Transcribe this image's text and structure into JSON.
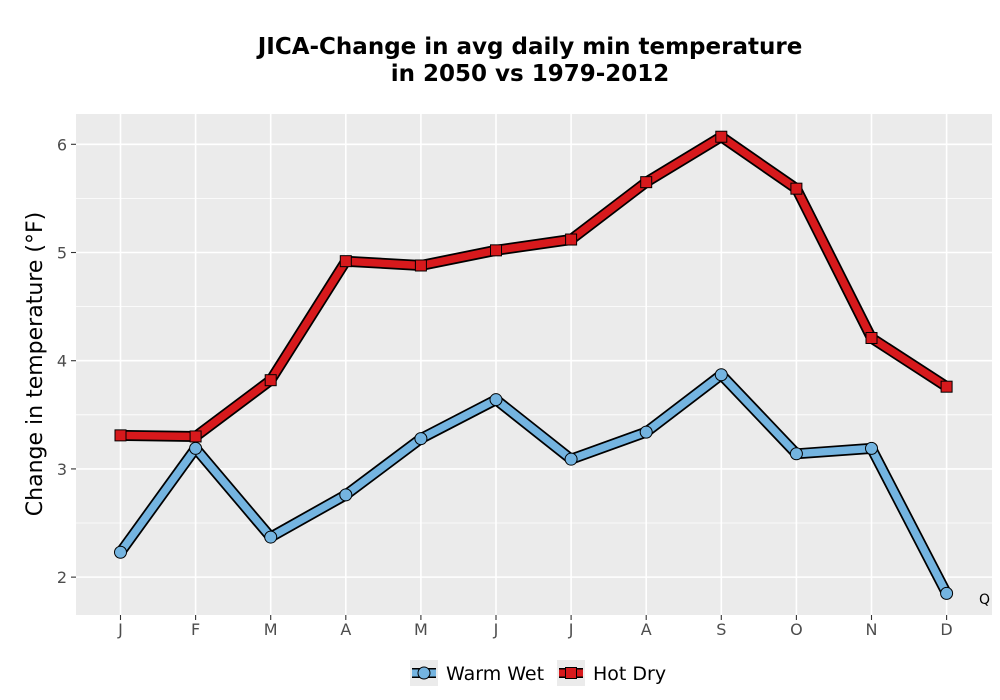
{
  "chart_data": {
    "type": "line",
    "title_line1": "JICA-Change in avg daily min temperature",
    "title_line2": "in 2050 vs 1979-2012",
    "xlabel": "",
    "ylabel": "Change in temperature (°F)",
    "categories": [
      "J",
      "F",
      "M",
      "A",
      "M",
      "J",
      "J",
      "A",
      "S",
      "O",
      "N",
      "D"
    ],
    "ylim": [
      1.65,
      6.28
    ],
    "yticks": [
      2,
      3,
      4,
      5,
      6
    ],
    "grid": true,
    "legend_position": "bottom",
    "annotation": "Q",
    "series": [
      {
        "name": "Warm Wet",
        "marker": "circle",
        "color": "#74b4e0",
        "values": [
          2.23,
          3.19,
          2.37,
          2.76,
          3.28,
          3.64,
          3.09,
          3.34,
          3.87,
          3.14,
          3.19,
          1.85
        ]
      },
      {
        "name": "Hot Dry",
        "marker": "square",
        "color": "#d7191c",
        "values": [
          3.31,
          3.3,
          3.82,
          4.92,
          4.88,
          5.02,
          5.12,
          5.65,
          6.07,
          5.59,
          4.21,
          3.76
        ]
      }
    ]
  }
}
